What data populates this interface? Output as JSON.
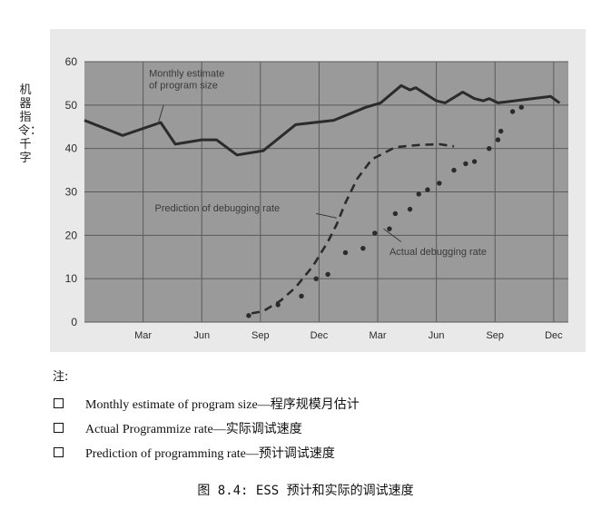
{
  "colors": {
    "plot_bg": "#9a9a9a",
    "paper": "#e9e9e9",
    "ink": "#2b2b2b",
    "grid": "#5a5a5a"
  },
  "chart_data": {
    "type": "line",
    "ylabel": "机器指令：千字",
    "ylim": [
      0,
      60
    ],
    "yticks": [
      0,
      10,
      20,
      30,
      40,
      50,
      60
    ],
    "xlim": [
      0,
      16.5
    ],
    "xtick_labels": [
      {
        "x": 2,
        "label": "Mar"
      },
      {
        "x": 4,
        "label": "Jun"
      },
      {
        "x": 6,
        "label": "Sep"
      },
      {
        "x": 8,
        "label": "Dec"
      },
      {
        "x": 10,
        "label": "Mar"
      },
      {
        "x": 12,
        "label": "Jun"
      },
      {
        "x": 14,
        "label": "Sep"
      },
      {
        "x": 16,
        "label": "Dec"
      }
    ],
    "grid": true,
    "series": [
      {
        "name": "Monthly estimate of program size",
        "style": "solid",
        "points": [
          [
            0,
            46.5
          ],
          [
            1.3,
            43
          ],
          [
            2.6,
            46
          ],
          [
            3.1,
            41
          ],
          [
            4,
            42
          ],
          [
            4.5,
            42
          ],
          [
            5.2,
            38.5
          ],
          [
            6.1,
            39.5
          ],
          [
            7.2,
            45.5
          ],
          [
            8.5,
            46.5
          ],
          [
            9.6,
            49.5
          ],
          [
            10.1,
            50.5
          ],
          [
            10.8,
            54.5
          ],
          [
            11.1,
            53.5
          ],
          [
            11.3,
            54
          ],
          [
            12,
            51
          ],
          [
            12.3,
            50.5
          ],
          [
            12.9,
            53
          ],
          [
            13.3,
            51.5
          ],
          [
            13.6,
            51
          ],
          [
            13.8,
            51.5
          ],
          [
            14.1,
            50.5
          ],
          [
            15.9,
            52
          ],
          [
            16.2,
            50.5
          ]
        ]
      },
      {
        "name": "Prediction of debugging rate",
        "style": "dashed",
        "points": [
          [
            5.7,
            2
          ],
          [
            6.1,
            2.5
          ],
          [
            6.7,
            5
          ],
          [
            7.2,
            8
          ],
          [
            7.8,
            13
          ],
          [
            8.3,
            18.5
          ],
          [
            8.6,
            22.5
          ],
          [
            8.9,
            27.5
          ],
          [
            9.3,
            33
          ],
          [
            9.8,
            37.5
          ],
          [
            10.6,
            40.3
          ],
          [
            11.4,
            40.8
          ],
          [
            12.1,
            41
          ],
          [
            12.6,
            40.5
          ]
        ]
      },
      {
        "name": "Actual debugging rate",
        "style": "dots",
        "points": [
          [
            5.6,
            1.5
          ],
          [
            6.6,
            4
          ],
          [
            7.4,
            6
          ],
          [
            7.9,
            10
          ],
          [
            8.3,
            11
          ],
          [
            8.9,
            16
          ],
          [
            9.5,
            17
          ],
          [
            9.9,
            20.5
          ],
          [
            10.4,
            21.5
          ],
          [
            10.6,
            25
          ],
          [
            11.1,
            26
          ],
          [
            11.4,
            29.5
          ],
          [
            11.7,
            30.5
          ],
          [
            12.1,
            32
          ],
          [
            12.6,
            35
          ],
          [
            13,
            36.5
          ],
          [
            13.3,
            37
          ],
          [
            13.8,
            40
          ],
          [
            14.1,
            42
          ],
          [
            14.2,
            44
          ],
          [
            14.6,
            48.5
          ],
          [
            14.9,
            49.5
          ]
        ]
      }
    ],
    "annotations": [
      {
        "text": "Monthly estimate of program size",
        "x": 2.2,
        "y": 56.5
      },
      {
        "text": "Prediction of debugging rate",
        "x": 2.4,
        "y": 25.5
      },
      {
        "text": "Actual debugging rate",
        "x": 10.4,
        "y": 15.5
      }
    ]
  },
  "notes": {
    "title": "注:",
    "items": [
      "Monthly estimate of program size—程序规模月估计",
      "Actual Programmize rate—实际调试速度",
      "Prediction of programming rate—预计调试速度"
    ]
  },
  "caption": "图 8.4: ESS 预计和实际的调试速度"
}
